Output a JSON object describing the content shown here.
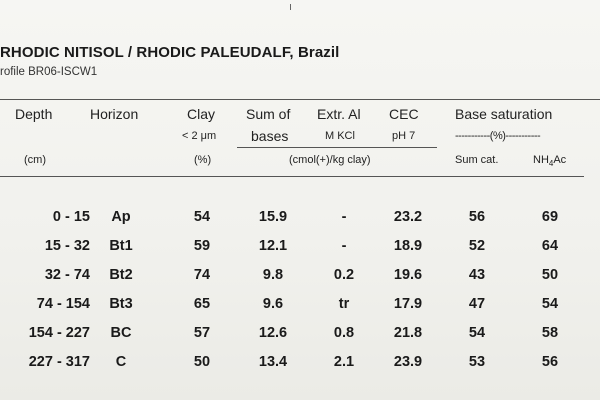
{
  "title": "RHODIC NITISOL / RHODIC PALEUDALF, Brazil",
  "subtitle": "rofile BR06-ISCW1",
  "headers": {
    "depth": "Depth",
    "depth_unit": "(cm)",
    "horizon": "Horizon",
    "clay": "Clay",
    "clay_sub": "< 2 μm",
    "clay_unit": "(%)",
    "sum_of": "Sum of",
    "bases": "bases",
    "extr_al": "Extr. Al",
    "m_kcl": "M KCl",
    "cec": "CEC",
    "ph7": "pH 7",
    "shared_unit": "(cmol(+)/kg clay)",
    "base_saturation": "Base saturation",
    "bs_unit": "-----------(%)-----------",
    "sum_cat": "Sum cat.",
    "nh4ac": "NH",
    "nh4ac_sub": "4",
    "nh4ac_tail": "Ac"
  },
  "rows": [
    {
      "depth": "0 - 15",
      "horizon": "Ap",
      "clay": "54",
      "sum_bases": "15.9",
      "extr_al": "-",
      "cec": "23.2",
      "bs_sum": "56",
      "bs_nh4": "69"
    },
    {
      "depth": "15 - 32",
      "horizon": "Bt1",
      "clay": "59",
      "sum_bases": "12.1",
      "extr_al": "-",
      "cec": "18.9",
      "bs_sum": "52",
      "bs_nh4": "64"
    },
    {
      "depth": "32 - 74",
      "horizon": "Bt2",
      "clay": "74",
      "sum_bases": "9.8",
      "extr_al": "0.2",
      "cec": "19.6",
      "bs_sum": "43",
      "bs_nh4": "50"
    },
    {
      "depth": "74 - 154",
      "horizon": "Bt3",
      "clay": "65",
      "sum_bases": "9.6",
      "extr_al": "tr",
      "cec": "17.9",
      "bs_sum": "47",
      "bs_nh4": "54"
    },
    {
      "depth": "154 - 227",
      "horizon": "BC",
      "clay": "57",
      "sum_bases": "12.6",
      "extr_al": "0.8",
      "cec": "21.8",
      "bs_sum": "54",
      "bs_nh4": "58"
    },
    {
      "depth": "227 - 317",
      "horizon": "C",
      "clay": "50",
      "sum_bases": "13.4",
      "extr_al": "2.1",
      "cec": "23.9",
      "bs_sum": "53",
      "bs_nh4": "56"
    }
  ]
}
